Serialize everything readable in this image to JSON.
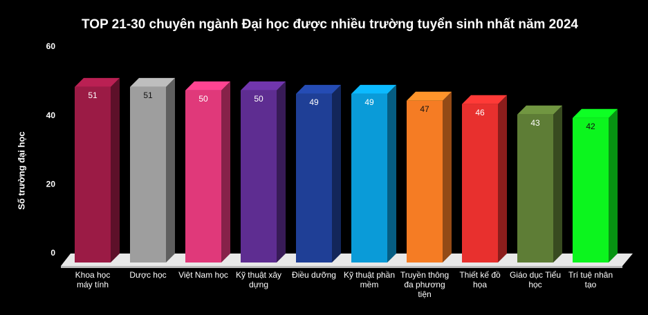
{
  "chart_data": {
    "type": "bar3d",
    "title": "TOP 21-30 chuyên ngành Đại học được nhiều trường tuyển sinh nhất năm 2024",
    "y_label": "Số trường đại học",
    "categories": [
      "Khoa học máy tính",
      "Dược học",
      "Việt Nam học",
      "Kỹ thuật xây dựng",
      "Điều dưỡng",
      "Kỹ thuật phần mềm",
      "Truyền thông đa phương tiện",
      "Thiết kế đồ họa",
      "Giáo dục Tiểu học",
      "Trí tuệ nhân tạo"
    ],
    "values": [
      51,
      51,
      50,
      50,
      49,
      49,
      47,
      46,
      43,
      42
    ],
    "colors": [
      "#9b1b45",
      "#9e9e9e",
      "#e0397a",
      "#5e2d91",
      "#1f3f96",
      "#0a9bd8",
      "#f57c24",
      "#e8302e",
      "#5e7d36",
      "#0cf51e"
    ],
    "ylim": [
      0,
      60
    ],
    "yticks": [
      0,
      20,
      40,
      60
    ],
    "grid": false
  }
}
